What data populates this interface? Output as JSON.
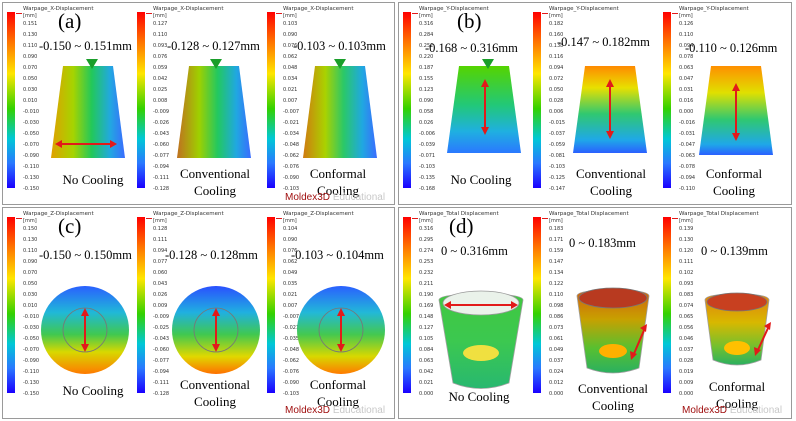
{
  "brand": {
    "name": "Moldex",
    "suffix": "3D",
    "edition": "Educational"
  },
  "unit": "[mm]",
  "colors": {
    "red_arrow": "#e21a1a",
    "marker": "#1a9e2a",
    "frame": "#9a9a9a"
  },
  "panels": [
    {
      "label": "(a)",
      "cells": [
        {
          "title": "Warpage_X-Displacement",
          "range": "-0.150 ~ 0.151mm",
          "caption": [
            "No Cooling"
          ],
          "ticks": [
            "0.151",
            "0.130",
            "0.110",
            "0.090",
            "0.070",
            "0.050",
            "0.030",
            "0.010",
            "-0.010",
            "-0.030",
            "-0.050",
            "-0.070",
            "-0.090",
            "-0.110",
            "-0.130",
            "-0.150"
          ]
        },
        {
          "title": "Warpage_X-Displacement",
          "range": "-0.128 ~ 0.127mm",
          "caption": [
            "Conventional",
            "Cooling"
          ],
          "ticks": [
            "0.127",
            "0.110",
            "0.093",
            "0.076",
            "0.059",
            "0.042",
            "0.025",
            "0.008",
            "-0.009",
            "-0.026",
            "-0.043",
            "-0.060",
            "-0.077",
            "-0.094",
            "-0.111",
            "-0.128"
          ]
        },
        {
          "title": "Warpage_X-Displacement",
          "range": "-0.103 ~ 0.103mm",
          "caption": [
            "Conformal",
            "Cooling"
          ],
          "ticks": [
            "0.103",
            "0.090",
            "0.076",
            "0.062",
            "0.048",
            "0.034",
            "0.021",
            "0.007",
            "-0.007",
            "-0.021",
            "-0.034",
            "-0.048",
            "-0.062",
            "-0.076",
            "-0.090",
            "-0.103"
          ]
        }
      ]
    },
    {
      "label": "(b)",
      "cells": [
        {
          "title": "Warpage_Y-Displacement",
          "range": "-0.168 ~ 0.316mm",
          "caption": [
            "No Cooling"
          ],
          "ticks": [
            "0.316",
            "0.284",
            "0.252",
            "0.220",
            "0.187",
            "0.155",
            "0.123",
            "0.090",
            "0.058",
            "0.026",
            "-0.006",
            "-0.039",
            "-0.071",
            "-0.103",
            "-0.135",
            "-0.168"
          ]
        },
        {
          "title": "Warpage_Y-Displacement",
          "range": "-0.147 ~ 0.182mm",
          "caption": [
            "Conventional",
            "Cooling"
          ],
          "ticks": [
            "0.182",
            "0.160",
            "0.138",
            "0.116",
            "0.094",
            "0.072",
            "0.050",
            "0.028",
            "0.006",
            "-0.015",
            "-0.037",
            "-0.059",
            "-0.081",
            "-0.103",
            "-0.125",
            "-0.147"
          ]
        },
        {
          "title": "Warpage_Y-Displacement",
          "range": "-0.110 ~ 0.126mm",
          "caption": [
            "Conformal",
            "Cooling"
          ],
          "ticks": [
            "0.126",
            "0.110",
            "0.094",
            "0.078",
            "0.063",
            "0.047",
            "0.031",
            "0.016",
            "0.000",
            "-0.016",
            "-0.031",
            "-0.047",
            "-0.063",
            "-0.078",
            "-0.094",
            "-0.110"
          ]
        }
      ]
    },
    {
      "label": "(c)",
      "cells": [
        {
          "title": "Warpage_Z-Displacement",
          "range": "-0.150 ~ 0.150mm",
          "caption": [
            "No Cooling"
          ],
          "ticks": [
            "0.150",
            "0.130",
            "0.110",
            "0.090",
            "0.070",
            "0.050",
            "0.030",
            "0.010",
            "-0.010",
            "-0.030",
            "-0.050",
            "-0.070",
            "-0.090",
            "-0.110",
            "-0.130",
            "-0.150"
          ]
        },
        {
          "title": "Warpage_Z-Displacement",
          "range": "-0.128 ~ 0.128mm",
          "caption": [
            "Conventional",
            "Cooling"
          ],
          "ticks": [
            "0.128",
            "0.111",
            "0.094",
            "0.077",
            "0.060",
            "0.043",
            "0.026",
            "0.009",
            "-0.009",
            "-0.025",
            "-0.043",
            "-0.060",
            "-0.077",
            "-0.094",
            "-0.111",
            "-0.128"
          ]
        },
        {
          "title": "Warpage_Z-Displacement",
          "range": "-0.103 ~ 0.104mm",
          "caption": [
            "Conformal",
            "Cooling"
          ],
          "ticks": [
            "0.104",
            "0.090",
            "0.076",
            "0.062",
            "0.049",
            "0.035",
            "0.021",
            "0.007",
            "-0.007",
            "-0.021",
            "-0.035",
            "-0.048",
            "-0.062",
            "-0.076",
            "-0.090",
            "-0.103"
          ]
        }
      ]
    },
    {
      "label": "(d)",
      "cells": [
        {
          "title": "Warpage_Total Displacement",
          "range": "0 ~ 0.316mm",
          "caption": [
            "No Cooling"
          ],
          "ticks": [
            "0.316",
            "0.295",
            "0.274",
            "0.253",
            "0.232",
            "0.211",
            "0.190",
            "0.169",
            "0.148",
            "0.127",
            "0.105",
            "0.084",
            "0.063",
            "0.042",
            "0.021",
            "0.000"
          ]
        },
        {
          "title": "Warpage_Total Displacement",
          "range": "0 ~ 0.183mm",
          "caption": [
            "Conventional",
            "Cooling"
          ],
          "ticks": [
            "0.183",
            "0.171",
            "0.159",
            "0.147",
            "0.134",
            "0.122",
            "0.110",
            "0.098",
            "0.086",
            "0.073",
            "0.061",
            "0.049",
            "0.037",
            "0.024",
            "0.012",
            "0.000"
          ]
        },
        {
          "title": "Warpage_Total Displacement",
          "range": "0 ~ 0.139mm",
          "caption": [
            "Conformal",
            "Cooling"
          ],
          "ticks": [
            "0.139",
            "0.130",
            "0.120",
            "0.111",
            "0.102",
            "0.093",
            "0.083",
            "0.074",
            "0.065",
            "0.056",
            "0.046",
            "0.037",
            "0.028",
            "0.019",
            "0.009",
            "0.000"
          ]
        }
      ]
    }
  ]
}
